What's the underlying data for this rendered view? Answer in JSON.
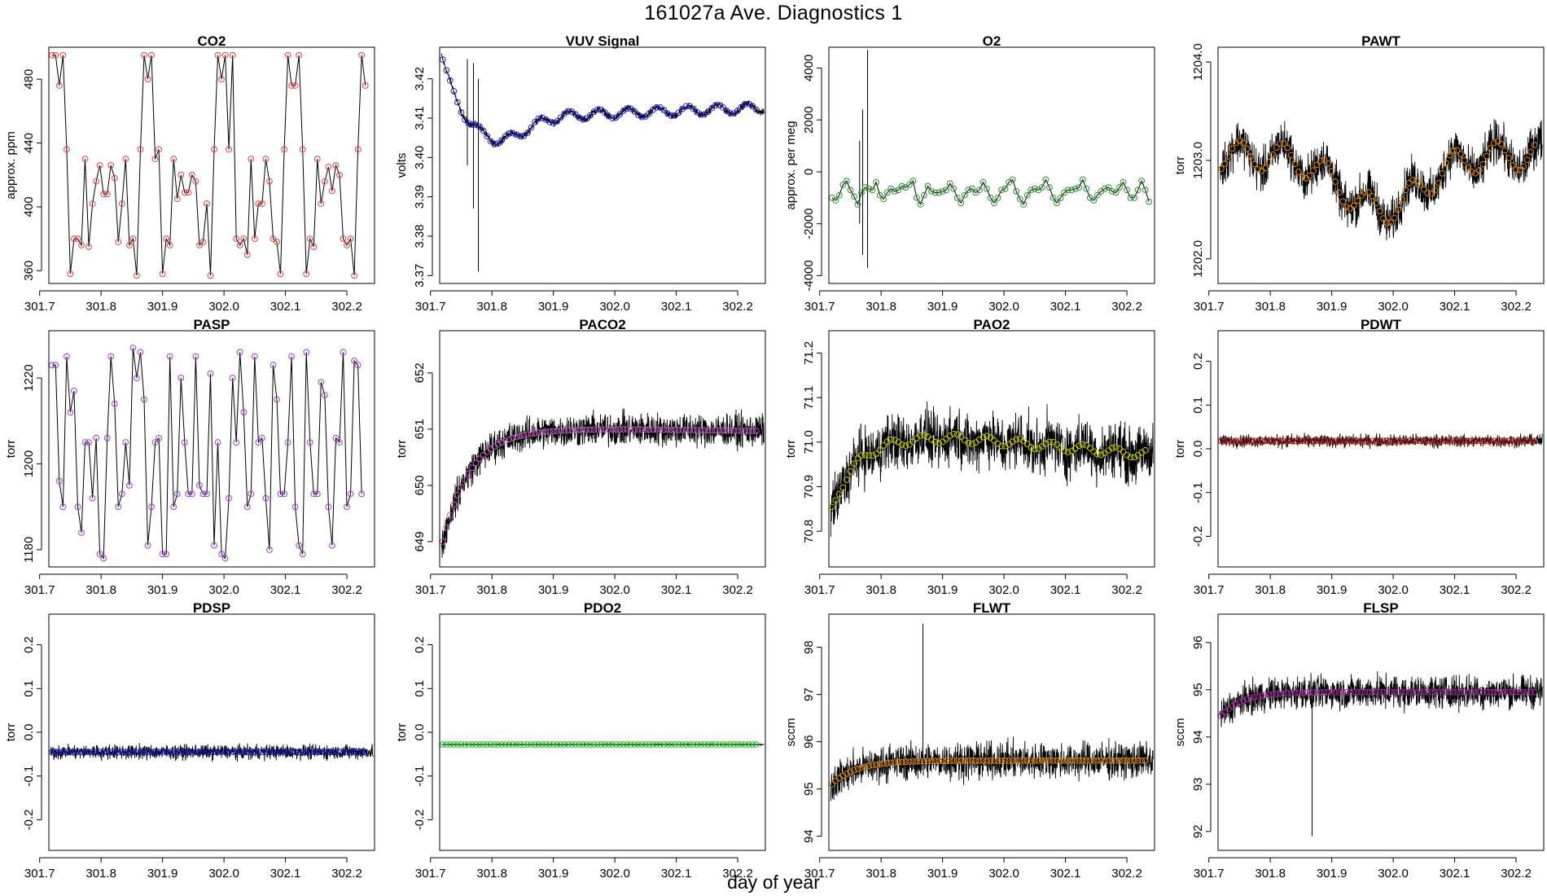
{
  "page": {
    "title": "161027a   Ave. Diagnostics 1",
    "xlabel": "day of year"
  },
  "chart_data": [
    {
      "type": "line",
      "title": "CO2",
      "ylabel": "approx. ppm",
      "xlim": [
        301.715,
        302.245
      ],
      "ylim": [
        352,
        500
      ],
      "xticks": [
        301.7,
        301.8,
        301.9,
        302.0,
        302.1,
        302.2
      ],
      "xtick_labels": [
        "301.7",
        "301.8",
        "301.9",
        "302.0",
        "302.1",
        "302.2"
      ],
      "yticks": [
        360,
        400,
        440,
        480
      ],
      "ytick_labels": [
        "360",
        "400",
        "440",
        "480"
      ],
      "marker_color": "#e04040",
      "series_style": "steps",
      "x_start": 301.72,
      "x_step": 0.006,
      "values": [
        495,
        495,
        476,
        495,
        436,
        358,
        380,
        380,
        376,
        430,
        375,
        402,
        416,
        426,
        408,
        408,
        426,
        418,
        378,
        402,
        430,
        376,
        380,
        357,
        436,
        495,
        480,
        495,
        430,
        436,
        358,
        380,
        376,
        430,
        405,
        420,
        409,
        409,
        420,
        416,
        376,
        378,
        402,
        357,
        436,
        495,
        480,
        495,
        436,
        495,
        380,
        376,
        380,
        370,
        430,
        380,
        402,
        402,
        430,
        416,
        380,
        378,
        358,
        436,
        495,
        476,
        476,
        495,
        436,
        358,
        380,
        375,
        430,
        402,
        416,
        425,
        410,
        426,
        420,
        380,
        376,
        380,
        357,
        436,
        495,
        476
      ]
    },
    {
      "type": "line",
      "title": "VUV Signal",
      "ylabel": "volts",
      "xlim": [
        301.715,
        302.245
      ],
      "ylim": [
        3.368,
        3.428
      ],
      "xticks": [
        301.7,
        301.8,
        301.9,
        302.0,
        302.1,
        302.2
      ],
      "xtick_labels": [
        "301.7",
        "301.8",
        "301.9",
        "302.0",
        "302.1",
        "302.2"
      ],
      "yticks": [
        3.37,
        3.38,
        3.39,
        3.4,
        3.41,
        3.42
      ],
      "ytick_labels": [
        "3.37",
        "3.38",
        "3.39",
        "3.40",
        "3.41",
        "3.42"
      ],
      "marker_color": "#2020c0",
      "series_style": "dense",
      "fn": "vuv",
      "noise": 0.0012,
      "spikes": [
        [
          301.76,
          3.398,
          3.425
        ],
        [
          301.77,
          3.387,
          3.424
        ],
        [
          301.778,
          3.371,
          3.42
        ]
      ]
    },
    {
      "type": "line",
      "title": "O2",
      "ylabel": "approx. per meg",
      "xlim": [
        301.715,
        302.245
      ],
      "ylim": [
        -4300,
        4800
      ],
      "xticks": [
        301.7,
        301.8,
        301.9,
        302.0,
        302.1,
        302.2
      ],
      "xtick_labels": [
        "301.7",
        "301.8",
        "301.9",
        "302.0",
        "302.1",
        "302.2"
      ],
      "yticks": [
        -4000,
        -2000,
        0,
        2000,
        4000
      ],
      "ytick_labels": [
        "-4000",
        "-2000",
        "0",
        "2000",
        "4000"
      ],
      "marker_color": "#2e8b2e",
      "series_style": "steps",
      "x_start": 301.72,
      "x_step": 0.006,
      "values": [
        -1000,
        -1100,
        -900,
        -500,
        -350,
        -700,
        -950,
        -1250,
        -800,
        -600,
        -650,
        -700,
        -400,
        -900,
        -1050,
        -800,
        -650,
        -750,
        -700,
        -550,
        -600,
        -500,
        -350,
        -1000,
        -1250,
        -900,
        -550,
        -750,
        -800,
        -800,
        -750,
        -700,
        -450,
        -650,
        -1000,
        -1200,
        -900,
        -700,
        -650,
        -800,
        -700,
        -400,
        -650,
        -1000,
        -1200,
        -1000,
        -700,
        -650,
        -400,
        -300,
        -750,
        -1050,
        -1250,
        -900,
        -700,
        -650,
        -700,
        -600,
        -300,
        -600,
        -1000,
        -1200,
        -1000,
        -800,
        -700,
        -700,
        -650,
        -600,
        -300,
        -650,
        -1000,
        -1100,
        -900,
        -750,
        -650,
        -600,
        -750,
        -800,
        -600,
        -400,
        -700,
        -1000,
        -1000,
        -700,
        -350,
        -700,
        -1150
      ],
      "spikes": [
        [
          301.77,
          -3200,
          2400
        ],
        [
          301.778,
          -3700,
          4700
        ],
        [
          301.765,
          -2000,
          1200
        ]
      ]
    },
    {
      "type": "line",
      "title": "PAWT",
      "ylabel": "torr",
      "xlim": [
        301.715,
        302.245
      ],
      "ylim": [
        1201.75,
        1204.15
      ],
      "xticks": [
        301.7,
        301.8,
        301.9,
        302.0,
        302.1,
        302.2
      ],
      "xtick_labels": [
        "301.7",
        "301.8",
        "301.9",
        "302.0",
        "302.1",
        "302.2"
      ],
      "yticks": [
        1202.0,
        1203.0,
        1204.0
      ],
      "ytick_labels": [
        "1202.0",
        "1203.0",
        "1204.0"
      ],
      "marker_color": "#e08a10",
      "series_style": "dense",
      "fn": "pawt",
      "noise": 0.32
    },
    {
      "type": "line",
      "title": "PASP",
      "ylabel": "torr",
      "xlim": [
        301.715,
        302.245
      ],
      "ylim": [
        1176,
        1231
      ],
      "xticks": [
        301.7,
        301.8,
        301.9,
        302.0,
        302.1,
        302.2
      ],
      "xtick_labels": [
        "301.7",
        "301.8",
        "301.9",
        "302.0",
        "302.1",
        "302.2"
      ],
      "yticks": [
        1180,
        1200,
        1220
      ],
      "ytick_labels": [
        "1180",
        "1200",
        "1220"
      ],
      "marker_color": "#9a40c8",
      "series_style": "steps",
      "x_start": 301.72,
      "x_step": 0.006,
      "values": [
        1223,
        1223,
        1196,
        1190,
        1225,
        1212,
        1217,
        1190,
        1184,
        1205,
        1205,
        1192,
        1206,
        1179,
        1178,
        1206,
        1225,
        1214,
        1190,
        1193,
        1205,
        1195,
        1227,
        1220,
        1226,
        1215,
        1181,
        1190,
        1205,
        1206,
        1179,
        1179,
        1225,
        1190,
        1193,
        1220,
        1205,
        1193,
        1193,
        1225,
        1195,
        1193,
        1193,
        1221,
        1181,
        1205,
        1179,
        1178,
        1192,
        1220,
        1205,
        1226,
        1212,
        1190,
        1193,
        1225,
        1205,
        1206,
        1192,
        1180,
        1223,
        1215,
        1193,
        1193,
        1205,
        1225,
        1190,
        1181,
        1179,
        1226,
        1205,
        1193,
        1193,
        1219,
        1216,
        1190,
        1181,
        1206,
        1205,
        1226,
        1190,
        1193,
        1224,
        1223,
        1193
      ]
    },
    {
      "type": "line",
      "title": "PACO2",
      "ylabel": "torr",
      "xlim": [
        301.715,
        302.245
      ],
      "ylim": [
        648.55,
        652.75
      ],
      "xticks": [
        301.7,
        301.8,
        301.9,
        302.0,
        302.1,
        302.2
      ],
      "xtick_labels": [
        "301.7",
        "301.8",
        "301.9",
        "302.0",
        "302.1",
        "302.2"
      ],
      "yticks": [
        649,
        650,
        651,
        652
      ],
      "ytick_labels": [
        "649",
        "650",
        "651",
        "652"
      ],
      "marker_color": "#c060c0",
      "series_style": "dense",
      "fn": "paco2",
      "noise": 0.42
    },
    {
      "type": "line",
      "title": "PAO2",
      "ylabel": "torr",
      "xlim": [
        301.715,
        302.245
      ],
      "ylim": [
        70.72,
        71.25
      ],
      "xticks": [
        301.7,
        301.8,
        301.9,
        302.0,
        302.1,
        302.2
      ],
      "xtick_labels": [
        "301.7",
        "301.8",
        "301.9",
        "302.0",
        "302.1",
        "302.2"
      ],
      "yticks": [
        70.8,
        70.9,
        71.0,
        71.1,
        71.2
      ],
      "ytick_labels": [
        "70.8",
        "70.9",
        "71.0",
        "71.1",
        "71.2"
      ],
      "marker_color": "#c8c800",
      "series_style": "dense",
      "fn": "pao2",
      "noise": 0.09
    },
    {
      "type": "line",
      "title": "PDWT",
      "ylabel": "torr",
      "xlim": [
        301.715,
        302.245
      ],
      "ylim": [
        -0.27,
        0.27
      ],
      "xticks": [
        301.7,
        301.8,
        301.9,
        302.0,
        302.1,
        302.2
      ],
      "xtick_labels": [
        "301.7",
        "301.8",
        "301.9",
        "302.0",
        "302.1",
        "302.2"
      ],
      "yticks": [
        -0.2,
        -0.1,
        0.0,
        0.1,
        0.2
      ],
      "ytick_labels": [
        "-0.2",
        "-0.1",
        "0.0",
        "0.1",
        "0.2"
      ],
      "marker_color": "#c02020",
      "series_style": "dense",
      "fn": "const",
      "level": 0.018,
      "noise": 0.021
    },
    {
      "type": "line",
      "title": "PDSP",
      "ylabel": "torr",
      "xlim": [
        301.715,
        302.245
      ],
      "ylim": [
        -0.27,
        0.27
      ],
      "xticks": [
        301.7,
        301.8,
        301.9,
        302.0,
        302.1,
        302.2
      ],
      "xtick_labels": [
        "301.7",
        "301.8",
        "301.9",
        "302.0",
        "302.1",
        "302.2"
      ],
      "yticks": [
        -0.2,
        -0.1,
        0.0,
        0.1,
        0.2
      ],
      "ytick_labels": [
        "-0.2",
        "-0.1",
        "0.0",
        "0.1",
        "0.2"
      ],
      "marker_color": "#2020c0",
      "series_style": "dense",
      "fn": "const",
      "level": -0.045,
      "noise": 0.024
    },
    {
      "type": "line",
      "title": "PDO2",
      "ylabel": "torr",
      "xlim": [
        301.715,
        302.245
      ],
      "ylim": [
        -0.27,
        0.27
      ],
      "xticks": [
        301.7,
        301.8,
        301.9,
        302.0,
        302.1,
        302.2
      ],
      "xtick_labels": [
        "301.7",
        "301.8",
        "301.9",
        "302.0",
        "302.1",
        "302.2"
      ],
      "yticks": [
        -0.2,
        -0.1,
        0.0,
        0.1,
        0.2
      ],
      "ytick_labels": [
        "-0.2",
        "-0.1",
        "0.0",
        "0.1",
        "0.2"
      ],
      "marker_color": "#20c020",
      "series_style": "dense",
      "fn": "const",
      "level": -0.028,
      "noise": 0.0015
    },
    {
      "type": "line",
      "title": "FLWT",
      "ylabel": "sccm",
      "xlim": [
        301.715,
        302.245
      ],
      "ylim": [
        93.7,
        98.7
      ],
      "xticks": [
        301.7,
        301.8,
        301.9,
        302.0,
        302.1,
        302.2
      ],
      "xtick_labels": [
        "301.7",
        "301.8",
        "301.9",
        "302.0",
        "302.1",
        "302.2"
      ],
      "yticks": [
        94,
        95,
        96,
        97,
        98
      ],
      "ytick_labels": [
        "94",
        "95",
        "96",
        "97",
        "98"
      ],
      "marker_color": "#e08a10",
      "series_style": "dense",
      "fn": "flwt",
      "noise": 0.55,
      "spikes": [
        [
          301.868,
          95.5,
          98.5
        ]
      ]
    },
    {
      "type": "line",
      "title": "FLSP",
      "ylabel": "sccm",
      "xlim": [
        301.715,
        302.245
      ],
      "ylim": [
        91.6,
        96.6
      ],
      "xticks": [
        301.7,
        301.8,
        301.9,
        302.0,
        302.1,
        302.2
      ],
      "xtick_labels": [
        "301.7",
        "301.8",
        "301.9",
        "302.0",
        "302.1",
        "302.2"
      ],
      "yticks": [
        92,
        93,
        94,
        95,
        96
      ],
      "ytick_labels": [
        "92",
        "93",
        "94",
        "95",
        "96"
      ],
      "marker_color": "#a030a0",
      "series_style": "dense",
      "fn": "flsp",
      "noise": 0.5,
      "spikes": [
        [
          301.868,
          91.9,
          94.8
        ]
      ]
    }
  ]
}
